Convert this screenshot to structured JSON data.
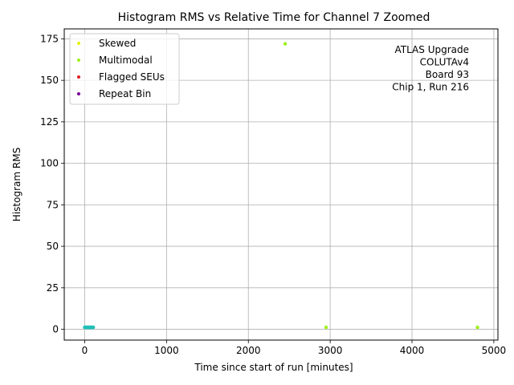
{
  "chart_data": {
    "type": "scatter",
    "title": "Histogram RMS vs Relative Time for Channel 7 Zoomed",
    "xlabel": "Time since start of run [minutes]",
    "ylabel": "Histogram RMS",
    "xlim": [
      -250,
      5050
    ],
    "ylim": [
      -6.5,
      181
    ],
    "xticks": [
      0,
      1000,
      2000,
      3000,
      4000,
      5000
    ],
    "yticks": [
      0,
      25,
      50,
      75,
      100,
      125,
      150,
      175
    ],
    "grid": true,
    "legend_position": "top-left",
    "annotation": [
      "ATLAS Upgrade",
      "COLUTAv4",
      "Board 93",
      "Chip 1, Run 216"
    ],
    "annotation_position": "top-right",
    "series": [
      {
        "name": "Skewed",
        "color": "#e6f20d",
        "points": []
      },
      {
        "name": "Multimodal",
        "color": "#9ef01a",
        "points": [
          [
            2450,
            172
          ],
          [
            2950,
            1.2
          ],
          [
            4800,
            1.2
          ]
        ]
      },
      {
        "name": "Flagged SEUs",
        "color": "#e02020",
        "points": []
      },
      {
        "name": "Repeat Bin",
        "color": "#7a0099",
        "points": []
      },
      {
        "name": "",
        "color": "#20c0b8",
        "points": [
          [
            0,
            1.2
          ],
          [
            5,
            1.2
          ],
          [
            10,
            1.2
          ],
          [
            15,
            1.2
          ],
          [
            20,
            1.2
          ],
          [
            25,
            1.2
          ],
          [
            30,
            1.2
          ],
          [
            35,
            1.2
          ],
          [
            40,
            1.2
          ],
          [
            45,
            1.2
          ],
          [
            50,
            1.2
          ],
          [
            55,
            1.2
          ],
          [
            60,
            1.2
          ],
          [
            65,
            1.2
          ],
          [
            70,
            1.2
          ],
          [
            75,
            1.2
          ],
          [
            80,
            1.2
          ],
          [
            85,
            1.2
          ],
          [
            90,
            1.2
          ],
          [
            95,
            1.2
          ],
          [
            100,
            1.2
          ],
          [
            105,
            1.2
          ]
        ]
      }
    ]
  }
}
